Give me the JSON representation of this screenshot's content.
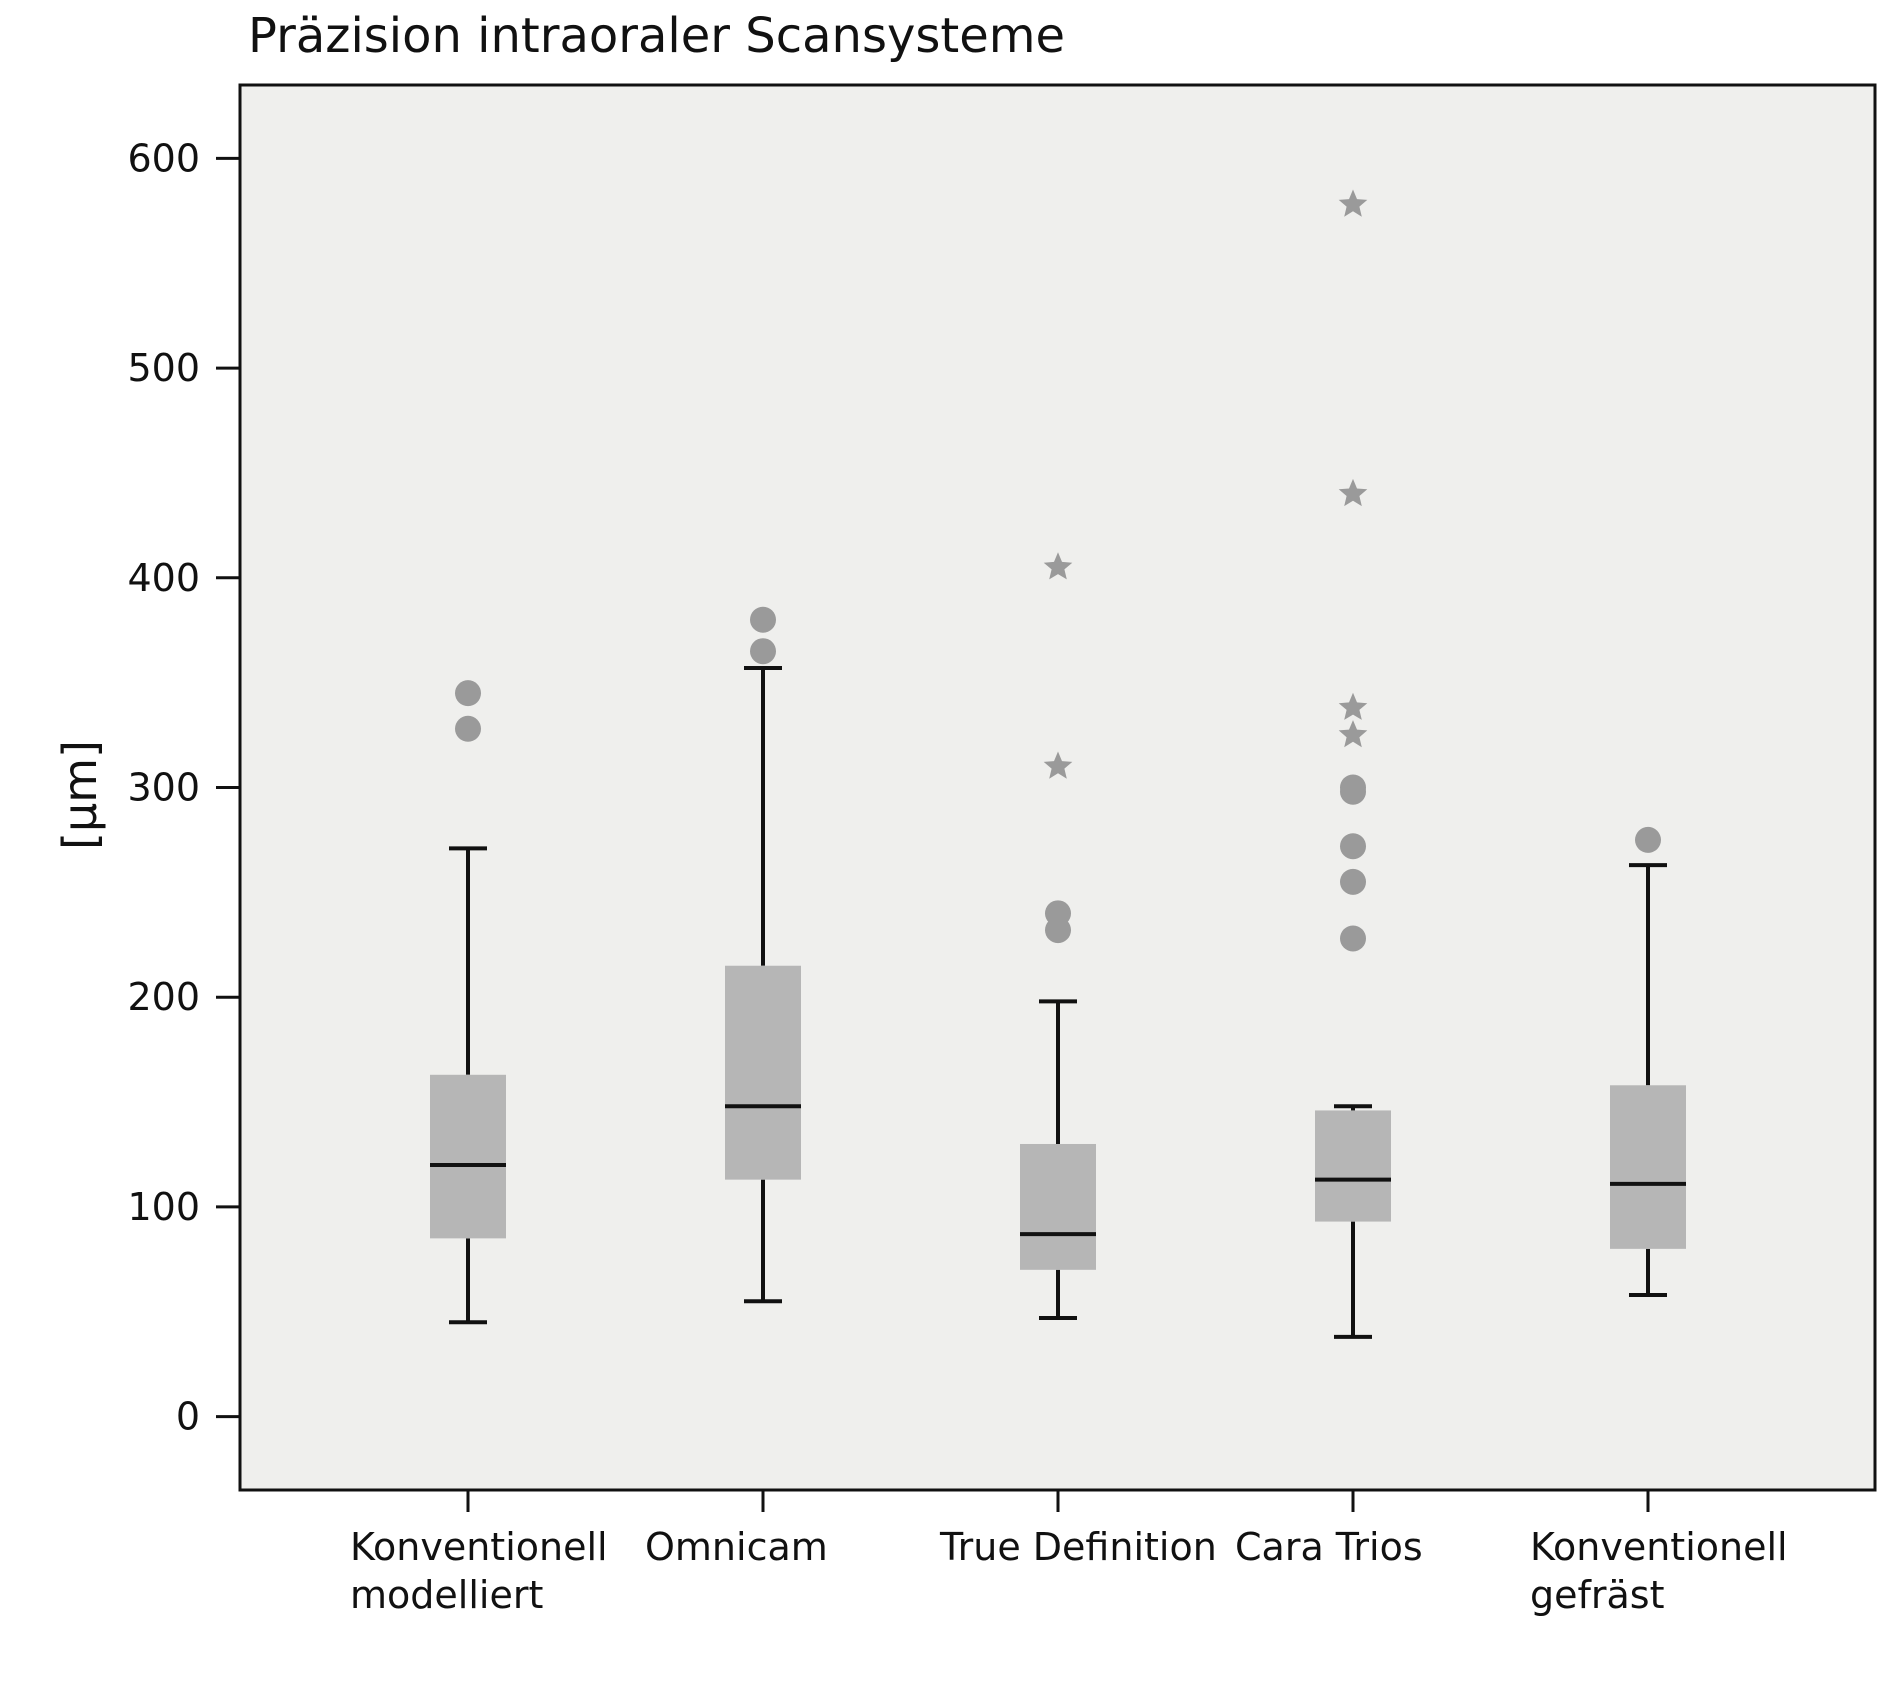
{
  "chart_data": {
    "type": "boxplot",
    "title": "Präzision intraoraler Scansysteme",
    "ylabel": "[µm]",
    "xlabel": "",
    "ylim": [
      -35,
      635
    ],
    "yticks": [
      0,
      100,
      200,
      300,
      400,
      500,
      600
    ],
    "grid": false,
    "legend": "none",
    "colors": {
      "plot_background": "#efefed",
      "box_fill": "#b6b6b6",
      "whisker": "#111111",
      "median": "#111111",
      "outlier": "#9a9a9a"
    },
    "categories": [
      [
        "Konventionell",
        "modelliert"
      ],
      [
        "Omnicam"
      ],
      [
        "True Definition"
      ],
      [
        "Cara Trios"
      ],
      [
        "Konventionell",
        "gefräst"
      ]
    ],
    "boxes": [
      {
        "whisker_low": 45,
        "q1": 85,
        "median": 120,
        "q3": 163,
        "whisker_high": 271,
        "outliers": [
          345,
          328
        ],
        "extremes": []
      },
      {
        "whisker_low": 55,
        "q1": 113,
        "median": 148,
        "q3": 215,
        "whisker_high": 357,
        "outliers": [
          380,
          365
        ],
        "extremes": []
      },
      {
        "whisker_low": 47,
        "q1": 70,
        "median": 87,
        "q3": 130,
        "whisker_high": 198,
        "outliers": [
          240,
          232
        ],
        "extremes": [
          405,
          310
        ]
      },
      {
        "whisker_low": 38,
        "q1": 93,
        "median": 113,
        "q3": 146,
        "whisker_high": 148,
        "outliers": [
          300,
          298,
          272,
          255,
          228
        ],
        "extremes": [
          578,
          440,
          338,
          325
        ]
      },
      {
        "whisker_low": 58,
        "q1": 80,
        "median": 111,
        "q3": 158,
        "whisker_high": 263,
        "outliers": [
          275
        ],
        "extremes": []
      }
    ]
  }
}
